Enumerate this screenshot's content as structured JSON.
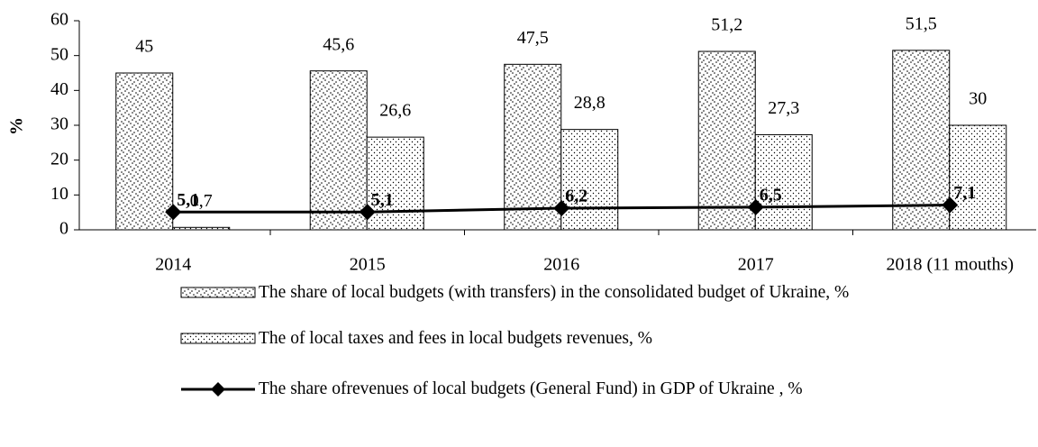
{
  "chart_data": {
    "type": "bar",
    "y_label": "%",
    "categories": [
      "2014",
      "2015",
      "2016",
      "2017",
      "2018 (11 mouths)"
    ],
    "series": [
      {
        "name": "The share of local budgets (with transfers) in the consolidated budget of Ukraine, %",
        "type": "bar",
        "color": "#000000",
        "values": [
          45,
          45.6,
          47.5,
          51.2,
          51.5
        ],
        "value_labels": [
          "45",
          "45,6",
          "47,5",
          "51,2",
          "51,5"
        ]
      },
      {
        "name": "The of local taxes and fees in local budgets revenues, %",
        "type": "bar",
        "color": "#000000",
        "values": [
          0.7,
          26.6,
          28.8,
          27.3,
          30
        ],
        "value_labels": [
          "0,7",
          "26,6",
          "28,8",
          "27,3",
          "30"
        ]
      },
      {
        "name": "The share ofrevenues of local budgets (General Fund) in GDP of Ukraine , %",
        "type": "line",
        "color": "#000000",
        "values": [
          5.1,
          5.1,
          6.2,
          6.5,
          7.1
        ],
        "value_labels": [
          "5,1",
          "5,1",
          "6,2",
          "6,5",
          "7,1"
        ]
      }
    ],
    "ylim": [
      0,
      60
    ],
    "yticks": [
      0,
      10,
      20,
      30,
      40,
      50,
      60
    ],
    "grid": false,
    "legend": "bottom"
  }
}
